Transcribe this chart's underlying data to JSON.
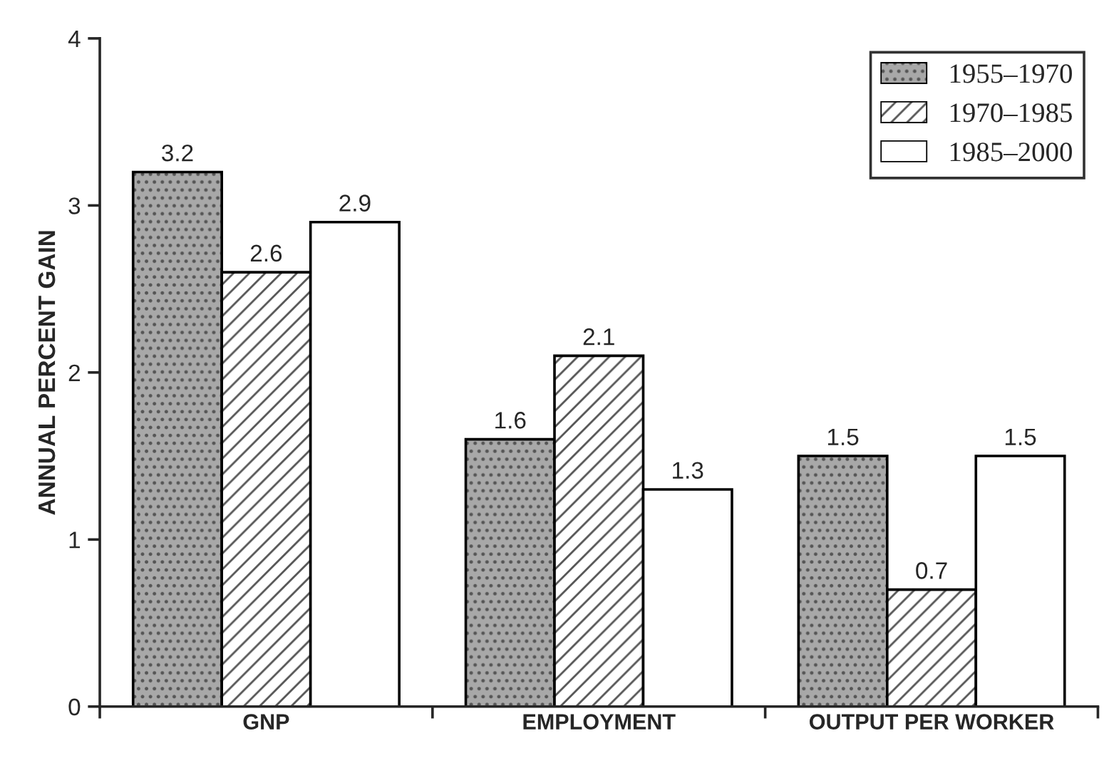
{
  "chart_data": {
    "type": "bar",
    "ylabel": "ANNUAL PERCENT GAIN",
    "categories": [
      "GNP",
      "EMPLOYMENT",
      "OUTPUT PER WORKER"
    ],
    "series": [
      {
        "name": "1955–1970",
        "color": "#a8a8a8",
        "values": [
          3.2,
          1.6,
          1.5
        ]
      },
      {
        "name": "1970–1985",
        "color": "#ffffff",
        "values": [
          2.6,
          2.1,
          0.7
        ]
      },
      {
        "name": "1985–2000",
        "color": "#ffffff",
        "values": [
          2.9,
          1.3,
          1.5
        ]
      }
    ],
    "ylim": [
      0,
      4
    ],
    "yticks": [
      0,
      1,
      2,
      3,
      4
    ],
    "grid": false,
    "legend": "top right",
    "data_labels": true
  }
}
